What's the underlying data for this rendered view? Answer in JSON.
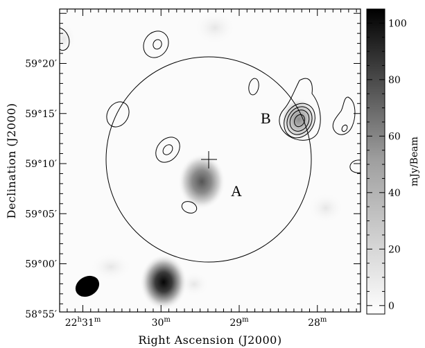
{
  "chart_data": {
    "type": "heatmap",
    "xlabel": "Right Ascension (J2000)",
    "ylabel": "Declination (J2000)",
    "x_ticks": [
      {
        "ra_min": 31,
        "h": "22",
        "hs": "h",
        "m": "31",
        "ms": "m"
      },
      {
        "ra_min": 30,
        "h": "",
        "hs": "",
        "m": "30",
        "ms": "m"
      },
      {
        "ra_min": 29,
        "h": "",
        "hs": "",
        "m": "29",
        "ms": "m"
      },
      {
        "ra_min": 28,
        "h": "",
        "hs": "",
        "m": "28",
        "ms": "m"
      }
    ],
    "y_ticks": [
      {
        "dec_arcmin": 20,
        "label": "59°20′"
      },
      {
        "dec_arcmin": 15,
        "label": "59°15′"
      },
      {
        "dec_arcmin": 10,
        "label": "59°10′"
      },
      {
        "dec_arcmin": 5,
        "label": "59°05′"
      },
      {
        "dec_arcmin": 0,
        "label": "59°00′"
      },
      {
        "dec_arcmin": -5,
        "label": "58°55′"
      }
    ],
    "colorbar": {
      "label": "mJy/Beam",
      "min": -3,
      "max": 105,
      "ticks": [
        0,
        20,
        40,
        60,
        80,
        100
      ],
      "colormap": "gray_reversed"
    },
    "sources": [
      {
        "name": "A",
        "ra_min": 29.32,
        "dec_arcmin": 7.2,
        "peak_mJy": 58
      },
      {
        "name": "B",
        "ra_min": 28.22,
        "dec_arcmin": 13.4,
        "peak_mJy": 30
      },
      {
        "name": "",
        "ra_min": 29.98,
        "dec_arcmin": -2.6,
        "peak_mJy": 105
      }
    ],
    "label_A": "A",
    "label_B": "B",
    "primary_beam": {
      "center_ra_min": 29.38,
      "center_dec_arcmin": 9.5
    },
    "pointing_center": {
      "ra_min": 29.38,
      "dec_arcmin": 9.6
    },
    "synthesized_beam_shape": "ellipse",
    "grid": false
  }
}
